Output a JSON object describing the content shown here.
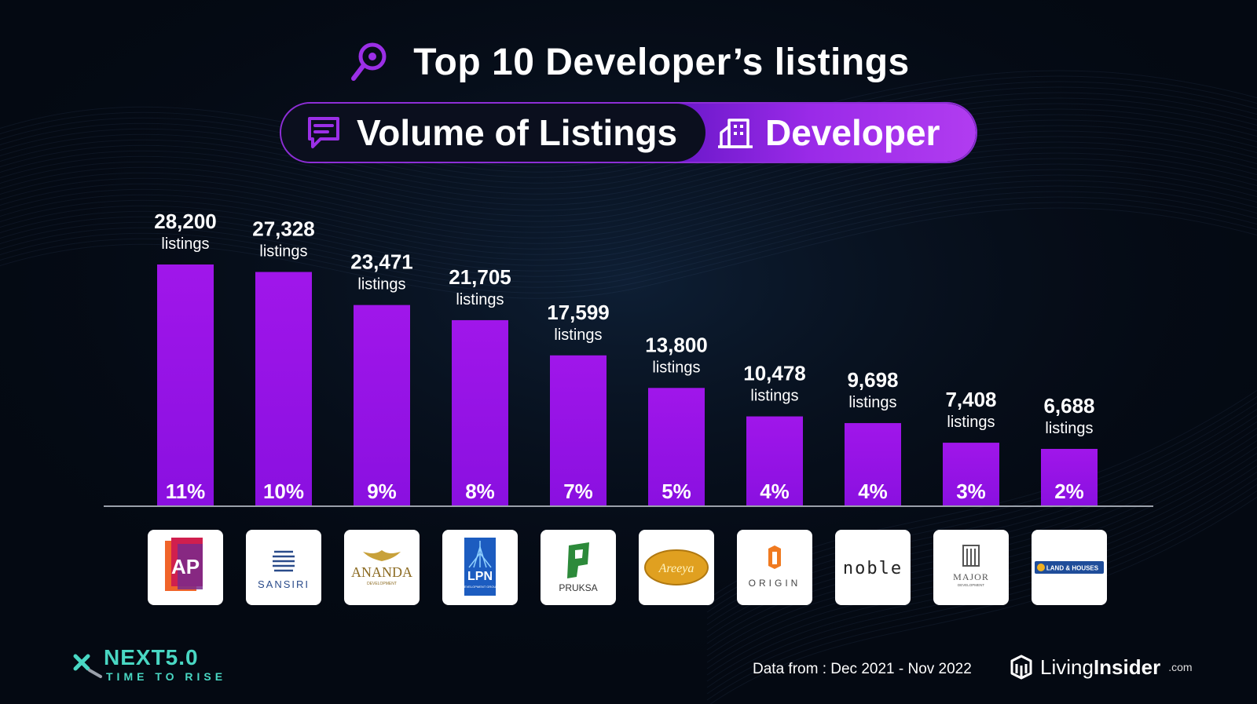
{
  "header": {
    "title": "Top 10 Developer’s listings",
    "pill_left_label": "Volume of Listings",
    "pill_right_label": "Developer",
    "icons": [
      "location-pin-icon",
      "message-box-icon",
      "building-icon"
    ]
  },
  "colors": {
    "bar": "#9a14e8",
    "bar_bottom": "#8a10e0",
    "accent": "#9b2fe6",
    "background": "#040912",
    "teal": "#49d7c3"
  },
  "chart_data": {
    "type": "bar",
    "title": "Top 10 Developer’s listings",
    "categories": [
      "AP",
      "SANSIRI",
      "ANANDA",
      "LPN",
      "PRUKSA",
      "Areeya",
      "ORIGIN",
      "noble",
      "MAJOR",
      "LAND & HOUSES"
    ],
    "values": [
      28200,
      27328,
      23471,
      21705,
      17599,
      13800,
      10478,
      9698,
      7408,
      6688
    ],
    "value_labels": [
      "28,200",
      "27,328",
      "23,471",
      "21,705",
      "17,599",
      "13,800",
      "10,478",
      "9,698",
      "7,408",
      "6,688"
    ],
    "unit_label": "listings",
    "percent_labels": [
      "11%",
      "10%",
      "9%",
      "8%",
      "7%",
      "5%",
      "4%",
      "4%",
      "3%",
      "2%"
    ],
    "xlabel": "",
    "ylabel": "",
    "ylim": [
      0,
      28200
    ],
    "grid": false,
    "legend": "none"
  },
  "logos": [
    {
      "name": "AP",
      "text": "AP"
    },
    {
      "name": "SANSIRI",
      "text": "SANSIRI"
    },
    {
      "name": "ANANDA",
      "text": "ANANDA",
      "sub": "DEVELOPMENT"
    },
    {
      "name": "LPN",
      "text": "LPN",
      "sub": "DEVELOPMENT GROUP"
    },
    {
      "name": "PRUKSA",
      "text": "PRUKSA"
    },
    {
      "name": "Areeya",
      "text": "Areeya"
    },
    {
      "name": "ORIGIN",
      "text": "ORIGIN"
    },
    {
      "name": "noble",
      "text": "noble"
    },
    {
      "name": "MAJOR",
      "text": "MAJOR",
      "sub": "DEVELOPMENT"
    },
    {
      "name": "LAND & HOUSES",
      "text": "LAND & HOUSES"
    }
  ],
  "footer": {
    "event_brand": "NEXT5.0",
    "event_tagline": "TIME TO RISE",
    "data_source": "Data from : Dec 2021 - Nov 2022",
    "company_name_light": "Living",
    "company_name_bold": "Insider",
    "company_domain": ".com"
  }
}
